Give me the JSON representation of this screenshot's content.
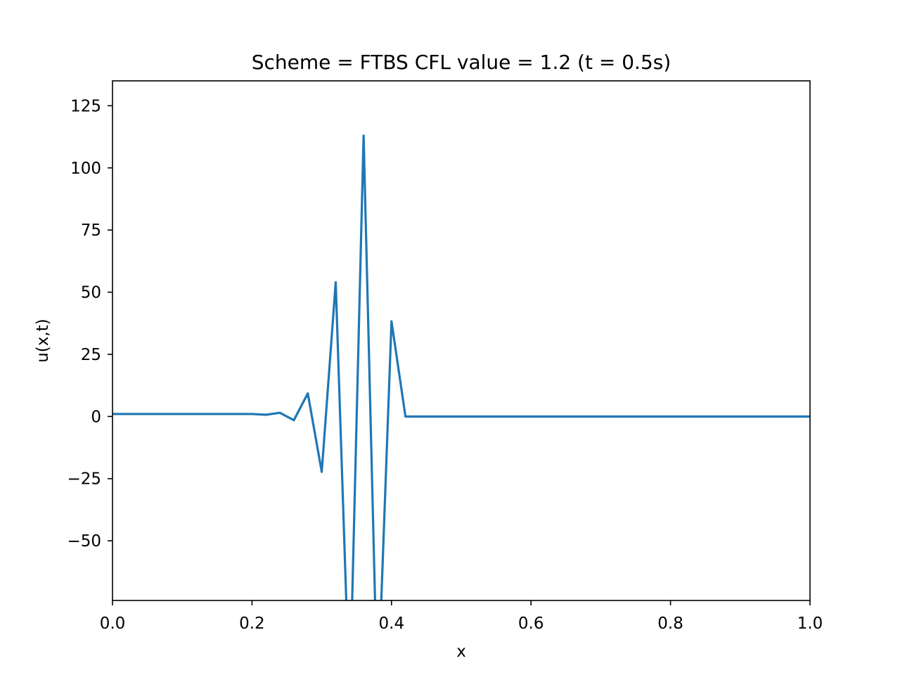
{
  "chart_data": {
    "type": "line",
    "title": "Scheme = FTBS CFL value = 1.2 (t = 0.5s)",
    "xlabel": "x",
    "ylabel": "u(x,t)",
    "xlim": [
      0.0,
      1.0
    ],
    "ylim": [
      -74,
      135
    ],
    "xticks": [
      {
        "value": 0.0,
        "label": "0.0"
      },
      {
        "value": 0.2,
        "label": "0.2"
      },
      {
        "value": 0.4,
        "label": "0.4"
      },
      {
        "value": 0.6,
        "label": "0.6"
      },
      {
        "value": 0.8,
        "label": "0.8"
      },
      {
        "value": 1.0,
        "label": "1.0"
      }
    ],
    "yticks": [
      {
        "value": 125,
        "label": "125"
      },
      {
        "value": 100,
        "label": "100"
      },
      {
        "value": 75,
        "label": "75"
      },
      {
        "value": 50,
        "label": "50"
      },
      {
        "value": 25,
        "label": "25"
      },
      {
        "value": 0,
        "label": "0"
      },
      {
        "value": -25,
        "label": "−25"
      },
      {
        "value": -50,
        "label": "−50"
      }
    ],
    "grid": false,
    "series": [
      {
        "color": "#1f77b4",
        "x": [
          0.0,
          0.02,
          0.04,
          0.06,
          0.08,
          0.1,
          0.12,
          0.14,
          0.16,
          0.18,
          0.2,
          0.22,
          0.24,
          0.26,
          0.28,
          0.3,
          0.32,
          0.34,
          0.36,
          0.38,
          0.4,
          0.42,
          0.44,
          0.46,
          0.48,
          0.5,
          0.52,
          0.54,
          0.56,
          0.58,
          0.6,
          0.62,
          0.64,
          0.66,
          0.68,
          0.7,
          0.72,
          0.74,
          0.76,
          0.78,
          0.8,
          0.82,
          0.84,
          0.86,
          0.88,
          0.9,
          0.92,
          0.94,
          0.96,
          0.98,
          1.0
        ],
        "y": [
          1,
          1,
          1,
          1,
          1,
          1,
          1,
          1,
          1,
          1,
          1,
          0.7,
          1.5,
          -1.5,
          9.3,
          -22.3,
          54,
          -115,
          113,
          -115,
          38.3,
          0,
          0,
          0,
          0,
          0,
          0,
          0,
          0,
          0,
          0,
          0,
          0,
          0,
          0,
          0,
          0,
          0,
          0,
          0,
          0,
          0,
          0,
          0,
          0,
          0,
          0,
          0,
          0,
          0,
          0
        ]
      }
    ]
  }
}
